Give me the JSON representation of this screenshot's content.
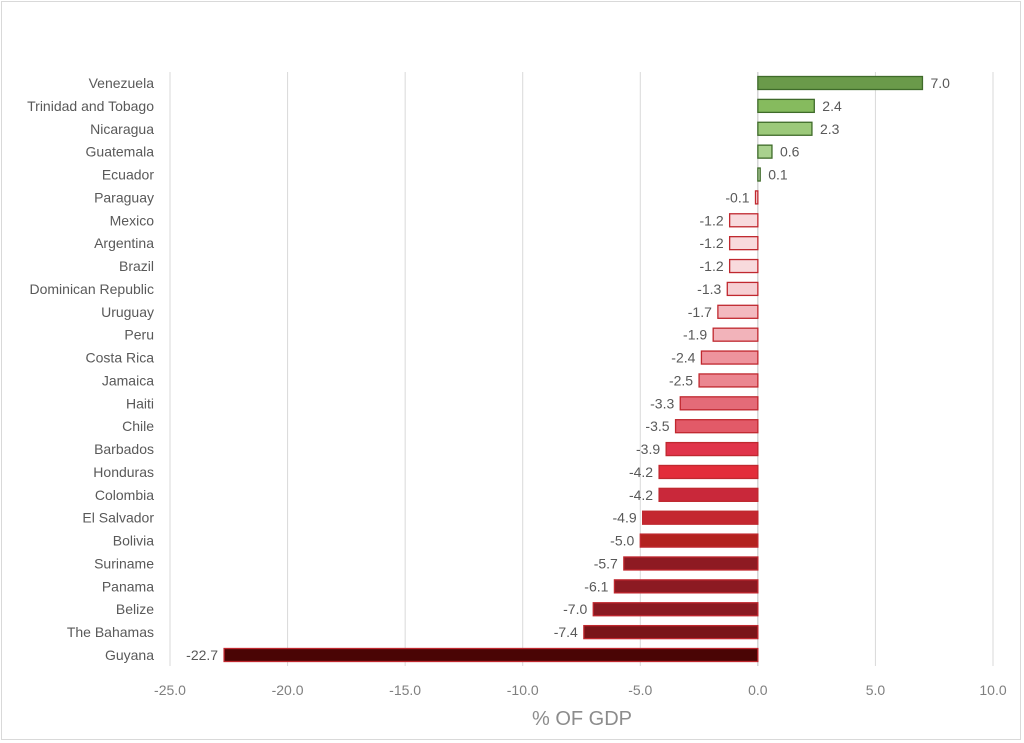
{
  "chart_data": {
    "type": "bar",
    "orientation": "horizontal",
    "title": "",
    "xlabel": "% OF GDP",
    "ylabel": "",
    "xlim": [
      -25,
      10
    ],
    "xticks": [
      "-25.0",
      "-20.0",
      "-15.0",
      "-10.0",
      "-5.0",
      "0.0",
      "5.0",
      "10.0"
    ],
    "grid": true,
    "legend": "none",
    "categories": [
      "Venezuela",
      "Trinidad and Tobago",
      "Nicaragua",
      "Guatemala",
      "Ecuador",
      "Paraguay",
      "Mexico",
      "Argentina",
      "Brazil",
      "Dominican Republic",
      "Uruguay",
      "Peru",
      "Costa Rica",
      "Jamaica",
      "Haiti",
      "Chile",
      "Barbados",
      "Honduras",
      "Colombia",
      "El Salvador",
      "Bolivia",
      "Suriname",
      "Panama",
      "Belize",
      "The Bahamas",
      "Guyana"
    ],
    "values": [
      7.0,
      2.4,
      2.3,
      0.6,
      0.1,
      -0.1,
      -1.2,
      -1.2,
      -1.2,
      -1.3,
      -1.7,
      -1.9,
      -2.4,
      -2.5,
      -3.3,
      -3.5,
      -3.9,
      -4.2,
      -4.2,
      -4.9,
      -5.0,
      -5.7,
      -6.1,
      -7.0,
      -7.4,
      -22.7
    ],
    "data_labels": [
      "7.0",
      "2.4",
      "2.3",
      "0.6",
      "0.1",
      "-0.1",
      "-1.2",
      "-1.2",
      "-1.2",
      "-1.3",
      "-1.7",
      "-1.9",
      "-2.4",
      "-2.5",
      "-3.3",
      "-3.5",
      "-3.9",
      "-4.2",
      "-4.2",
      "-4.9",
      "-5.0",
      "-5.7",
      "-6.1",
      "-7.0",
      "-7.4",
      "-22.7"
    ],
    "colors": [
      "#6a9a4a",
      "#86bb5e",
      "#9cc97a",
      "#a9d18e",
      "#c5e0b4",
      "#f8dadd",
      "#f8dadd",
      "#f8dadd",
      "#f8dadd",
      "#f6cfd3",
      "#f3b9bf",
      "#f2b3ba",
      "#ee949d",
      "#eb8690",
      "#e46b78",
      "#e25a68",
      "#e0344a",
      "#e32d3a",
      "#c9283a",
      "#c42730",
      "#b3221f",
      "#8e1a22",
      "#8c1a22",
      "#8a1a22",
      "#7a1519",
      "#4a0505"
    ],
    "edge_colors": [
      "#3f6b2a",
      "#3f6b2a",
      "#3f6b2a",
      "#3f6b2a",
      "#3f6b2a",
      "#c0282f",
      "#c0282f",
      "#c0282f",
      "#c0282f",
      "#c0282f",
      "#c0282f",
      "#c0282f",
      "#c0282f",
      "#c0282f",
      "#c0282f",
      "#c0282f",
      "#c0282f",
      "#c0282f",
      "#c0282f",
      "#c0282f",
      "#c0282f",
      "#c0282f",
      "#c0282f",
      "#c0282f",
      "#c0282f",
      "#c0282f"
    ]
  }
}
